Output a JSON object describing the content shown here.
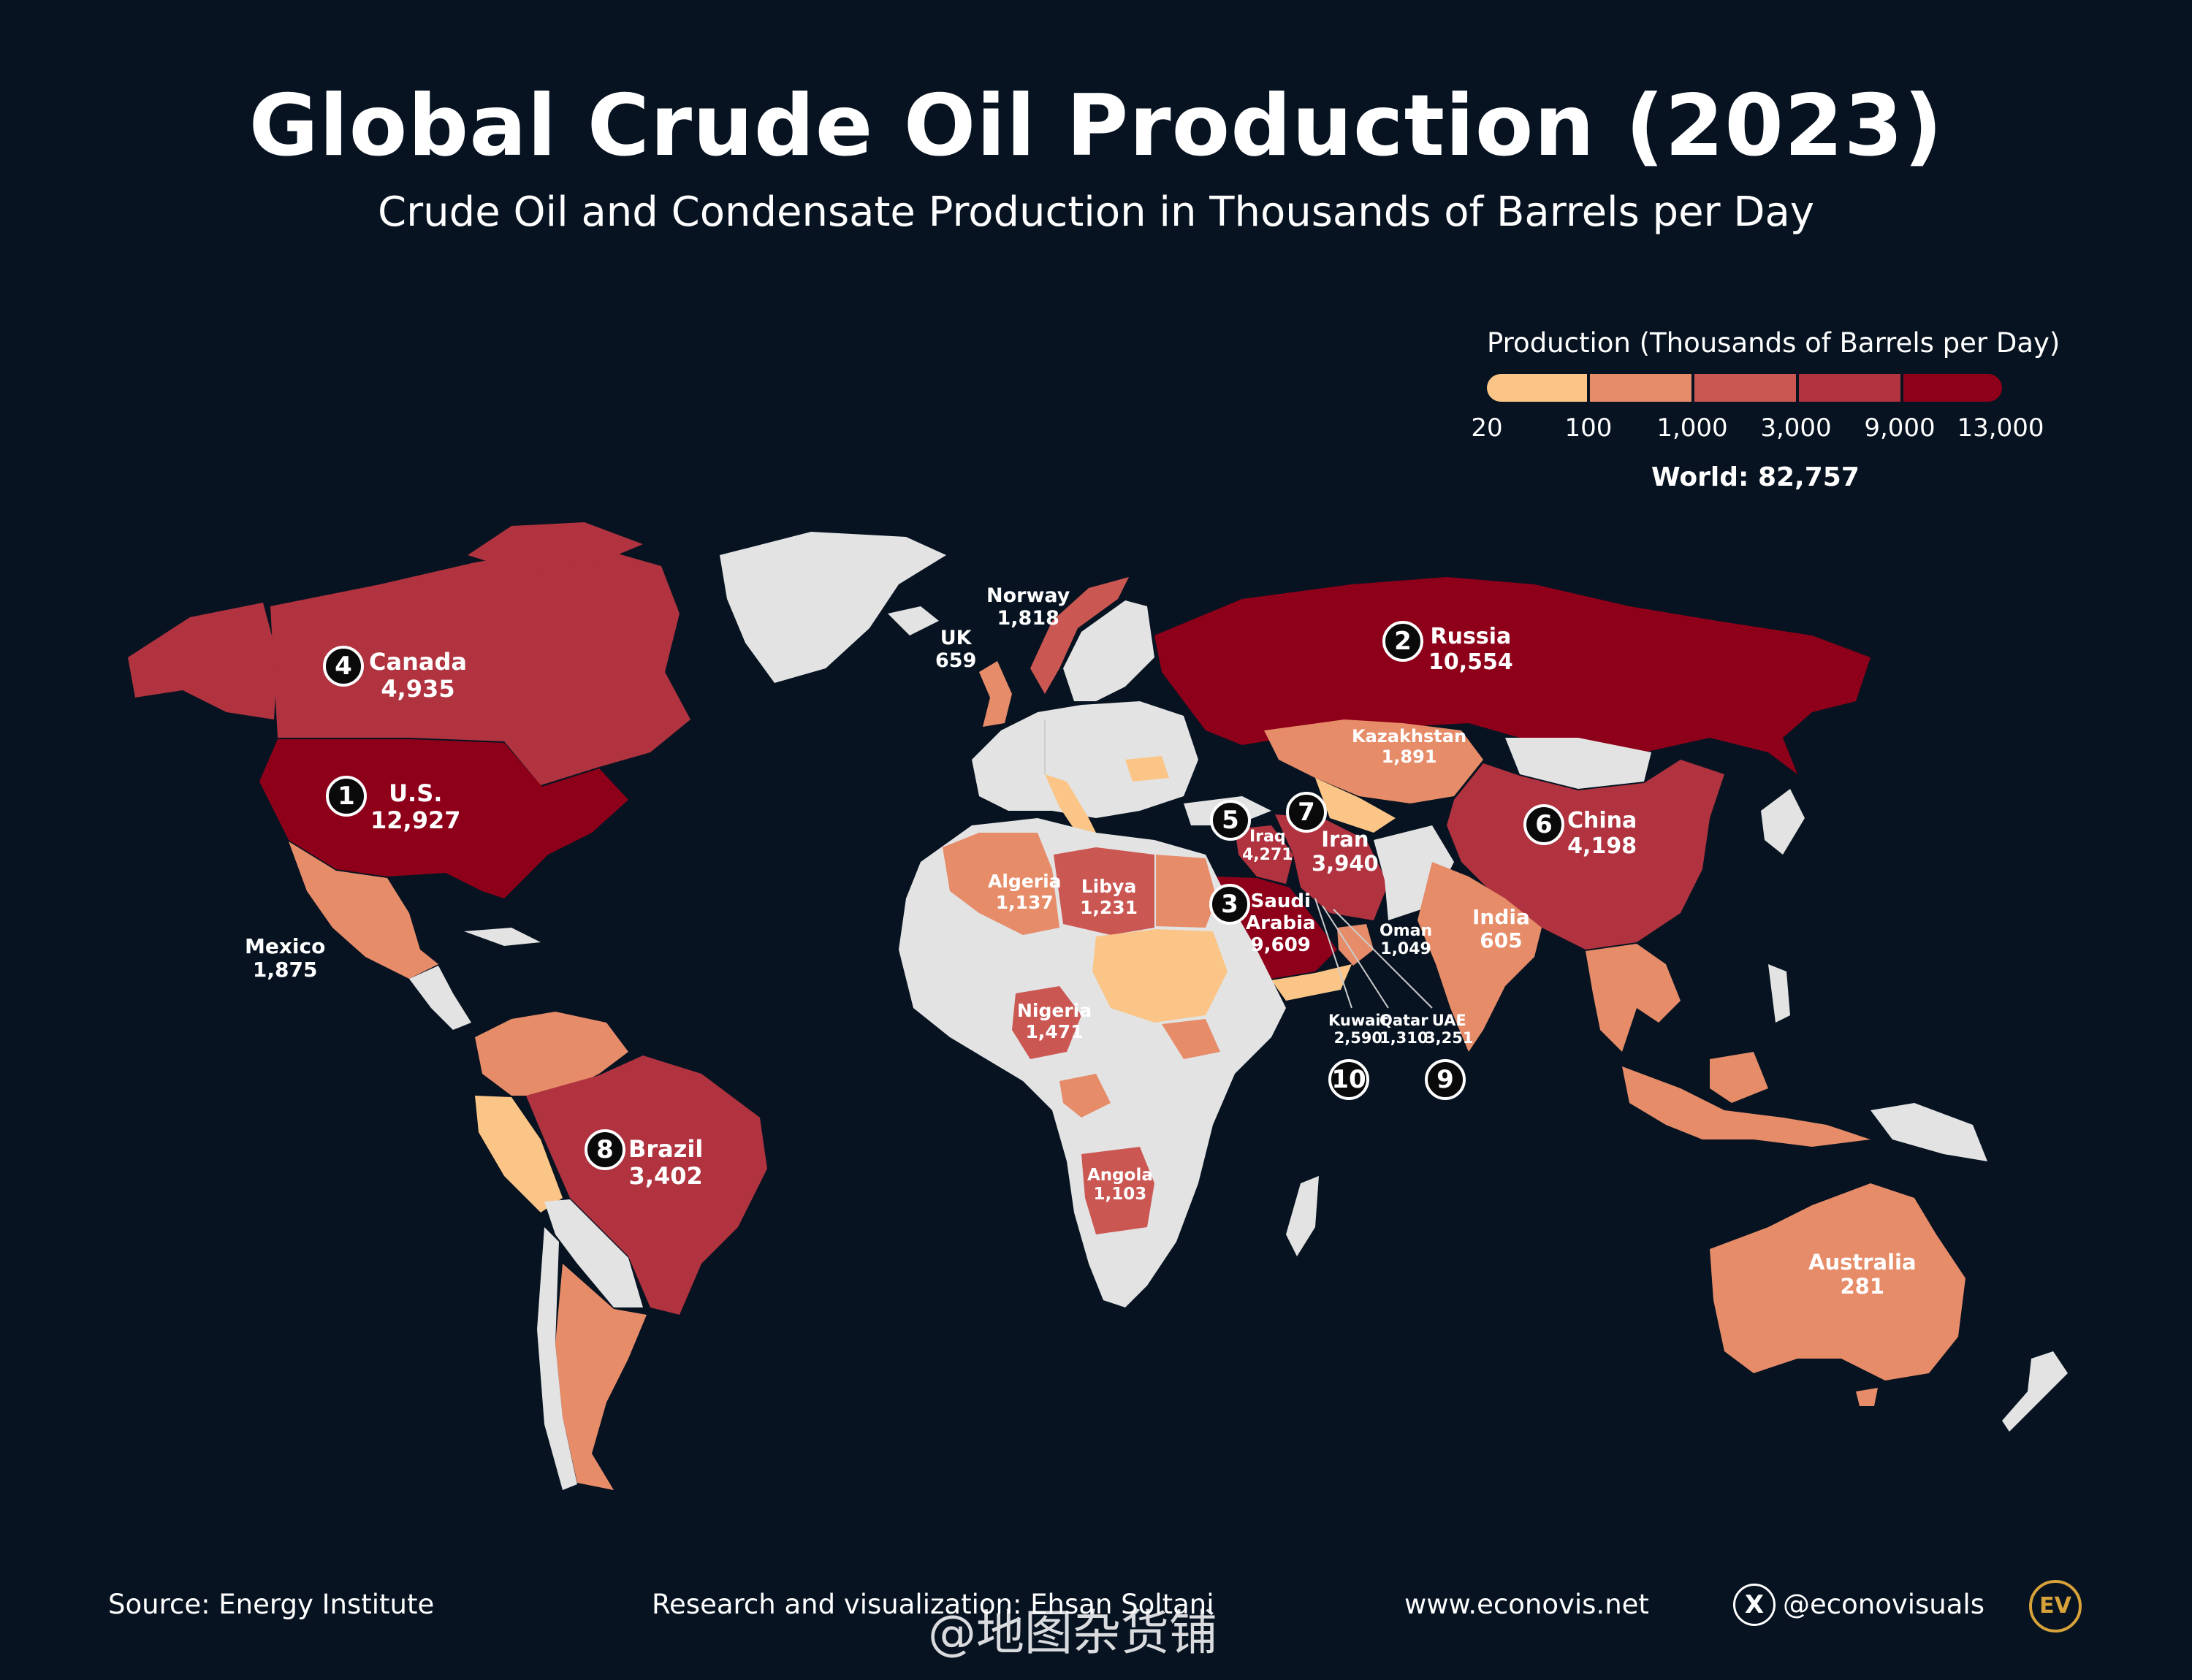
{
  "title": "Global Crude Oil Production (2023)",
  "subtitle": "Crude Oil and Condensate Production in Thousands of Barrels per Day",
  "legend": {
    "title": "Production (Thousands of Barrels per Day)",
    "ticks": [
      "20",
      "100",
      "1,000",
      "3,000",
      "9,000",
      "13,000"
    ],
    "colors": [
      "#fbc587",
      "#e68c69",
      "#cb5753",
      "#b0333f",
      "#8e0019"
    ],
    "world": "World: 82,757"
  },
  "countries": {
    "us": {
      "name": "U.S.",
      "value": "12,927",
      "rank": "1"
    },
    "russia": {
      "name": "Russia",
      "value": "10,554",
      "rank": "2"
    },
    "saudi": {
      "name": "Saudi Arabia",
      "name1": "Saudi",
      "name2": "Arabia",
      "value": "9,609",
      "rank": "3"
    },
    "canada": {
      "name": "Canada",
      "value": "4,935",
      "rank": "4"
    },
    "iraq": {
      "name": "Iraq",
      "value": "4,271",
      "rank": "5"
    },
    "china": {
      "name": "China",
      "value": "4,198",
      "rank": "6"
    },
    "iran": {
      "name": "Iran",
      "value": "3,940",
      "rank": "7"
    },
    "brazil": {
      "name": "Brazil",
      "value": "3,402",
      "rank": "8"
    },
    "uae": {
      "name": "UAE",
      "value": "3,251",
      "rank": "9"
    },
    "kuwait": {
      "name": "Kuwait",
      "value": "2,590",
      "rank": "10"
    },
    "kazakhstan": {
      "name": "Kazakhstan",
      "value": "1,891"
    },
    "mexico": {
      "name": "Mexico",
      "value": "1,875"
    },
    "norway": {
      "name": "Norway",
      "value": "1,818"
    },
    "nigeria": {
      "name": "Nigeria",
      "value": "1,471"
    },
    "qatar": {
      "name": "Qatar",
      "value": "1,310"
    },
    "libya": {
      "name": "Libya",
      "value": "1,231"
    },
    "algeria": {
      "name": "Algeria",
      "value": "1,137"
    },
    "angola": {
      "name": "Angola",
      "value": "1,103"
    },
    "oman": {
      "name": "Oman",
      "value": "1,049"
    },
    "uk": {
      "name": "UK",
      "value": "659"
    },
    "india": {
      "name": "India",
      "value": "605"
    },
    "australia": {
      "name": "Australia",
      "value": "281"
    }
  },
  "colors": {
    "background": "#071321",
    "no_data": "#e3e3e3",
    "tier1": "#fbc587",
    "tier2": "#e68c69",
    "tier3": "#cb5753",
    "tier4": "#b0333f",
    "tier5": "#8e0019"
  },
  "footer": {
    "source": "Source: Energy Institute",
    "credit": "Research and visualization: Ehsan Soltani",
    "website": "www.econovis.net",
    "social": "@econovisuals",
    "logo": "EV",
    "watermark": "@地图杂货铺"
  }
}
